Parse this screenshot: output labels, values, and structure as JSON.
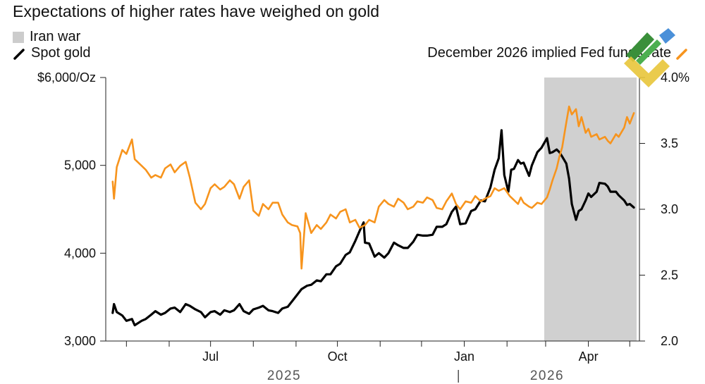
{
  "title": "Expectations of higher rates have weighed on gold",
  "legend": {
    "iran_war": "Iran war",
    "spot_gold": "Spot gold",
    "fed_funds": "December 2026 implied Fed funds rate"
  },
  "colors": {
    "gold_line": "#000000",
    "fed_line": "#f7941d",
    "shade": "#d0d0d0"
  },
  "chart_data": {
    "type": "line",
    "title": "Expectations of higher rates have weighed on gold",
    "x_ticks": [
      "Jul",
      "Oct",
      "Jan",
      "Apr"
    ],
    "year_labels": [
      "2025",
      "|",
      "2026"
    ],
    "left_axis": {
      "label": "$6,000/Oz",
      "ticks": [
        "3,000",
        "4,000",
        "5,000",
        "$6,000/Oz"
      ],
      "range": [
        3000,
        6000
      ]
    },
    "right_axis": {
      "ticks": [
        "2.0",
        "2.5",
        "3.0",
        "3.5",
        "4.0%"
      ],
      "range": [
        2.0,
        4.0
      ]
    },
    "shaded_period": {
      "name": "Iran war",
      "start": "2026-02-28",
      "end": "2026-05-15"
    },
    "series": [
      {
        "name": "Spot gold",
        "axis": "left",
        "points": [
          [
            "2025-04-21",
            3320
          ],
          [
            "2025-04-22",
            3420
          ],
          [
            "2025-04-24",
            3330
          ],
          [
            "2025-04-28",
            3290
          ],
          [
            "2025-05-01",
            3230
          ],
          [
            "2025-05-05",
            3250
          ],
          [
            "2025-05-07",
            3180
          ],
          [
            "2025-05-12",
            3230
          ],
          [
            "2025-05-15",
            3250
          ],
          [
            "2025-05-19",
            3300
          ],
          [
            "2025-05-22",
            3340
          ],
          [
            "2025-05-26",
            3300
          ],
          [
            "2025-05-29",
            3320
          ],
          [
            "2025-06-02",
            3370
          ],
          [
            "2025-06-05",
            3380
          ],
          [
            "2025-06-09",
            3330
          ],
          [
            "2025-06-13",
            3420
          ],
          [
            "2025-06-16",
            3400
          ],
          [
            "2025-06-20",
            3360
          ],
          [
            "2025-06-24",
            3330
          ],
          [
            "2025-06-27",
            3270
          ],
          [
            "2025-07-01",
            3330
          ],
          [
            "2025-07-04",
            3340
          ],
          [
            "2025-07-08",
            3300
          ],
          [
            "2025-07-11",
            3350
          ],
          [
            "2025-07-15",
            3330
          ],
          [
            "2025-07-18",
            3350
          ],
          [
            "2025-07-22",
            3420
          ],
          [
            "2025-07-25",
            3340
          ],
          [
            "2025-07-29",
            3310
          ],
          [
            "2025-08-01",
            3360
          ],
          [
            "2025-08-05",
            3380
          ],
          [
            "2025-08-08",
            3400
          ],
          [
            "2025-08-12",
            3350
          ],
          [
            "2025-08-15",
            3340
          ],
          [
            "2025-08-19",
            3320
          ],
          [
            "2025-08-22",
            3370
          ],
          [
            "2025-08-26",
            3390
          ],
          [
            "2025-08-29",
            3450
          ],
          [
            "2025-09-02",
            3530
          ],
          [
            "2025-09-05",
            3590
          ],
          [
            "2025-09-09",
            3630
          ],
          [
            "2025-09-12",
            3640
          ],
          [
            "2025-09-16",
            3690
          ],
          [
            "2025-09-19",
            3680
          ],
          [
            "2025-09-23",
            3760
          ],
          [
            "2025-09-26",
            3760
          ],
          [
            "2025-09-30",
            3850
          ],
          [
            "2025-10-03",
            3880
          ],
          [
            "2025-10-07",
            3980
          ],
          [
            "2025-10-10",
            4010
          ],
          [
            "2025-10-14",
            4140
          ],
          [
            "2025-10-17",
            4250
          ],
          [
            "2025-10-20",
            4350
          ],
          [
            "2025-10-21",
            4120
          ],
          [
            "2025-10-24",
            4110
          ],
          [
            "2025-10-28",
            3960
          ],
          [
            "2025-10-31",
            4000
          ],
          [
            "2025-11-04",
            3950
          ],
          [
            "2025-11-07",
            4000
          ],
          [
            "2025-11-11",
            4120
          ],
          [
            "2025-11-14",
            4090
          ],
          [
            "2025-11-18",
            4060
          ],
          [
            "2025-11-21",
            4060
          ],
          [
            "2025-11-25",
            4130
          ],
          [
            "2025-11-28",
            4210
          ],
          [
            "2025-12-02",
            4200
          ],
          [
            "2025-12-05",
            4200
          ],
          [
            "2025-12-09",
            4210
          ],
          [
            "2025-12-12",
            4300
          ],
          [
            "2025-12-16",
            4300
          ],
          [
            "2025-12-19",
            4330
          ],
          [
            "2025-12-23",
            4470
          ],
          [
            "2025-12-26",
            4530
          ],
          [
            "2025-12-29",
            4330
          ],
          [
            "2026-01-02",
            4340
          ],
          [
            "2026-01-06",
            4480
          ],
          [
            "2026-01-09",
            4500
          ],
          [
            "2026-01-13",
            4600
          ],
          [
            "2026-01-16",
            4590
          ],
          [
            "2026-01-20",
            4750
          ],
          [
            "2026-01-23",
            4950
          ],
          [
            "2026-01-26",
            5080
          ],
          [
            "2026-01-28",
            5400
          ],
          [
            "2026-01-30",
            4890
          ],
          [
            "2026-02-02",
            4700
          ],
          [
            "2026-02-04",
            4950
          ],
          [
            "2026-02-06",
            4960
          ],
          [
            "2026-02-09",
            5060
          ],
          [
            "2026-02-11",
            5020
          ],
          [
            "2026-02-13",
            5030
          ],
          [
            "2026-02-17",
            4880
          ],
          [
            "2026-02-19",
            5000
          ],
          [
            "2026-02-23",
            5150
          ],
          [
            "2026-02-26",
            5200
          ],
          [
            "2026-03-02",
            5310
          ],
          [
            "2026-03-04",
            5140
          ],
          [
            "2026-03-06",
            5150
          ],
          [
            "2026-03-09",
            5180
          ],
          [
            "2026-03-11",
            5150
          ],
          [
            "2026-03-13",
            5100
          ],
          [
            "2026-03-16",
            5020
          ],
          [
            "2026-03-18",
            4850
          ],
          [
            "2026-03-20",
            4560
          ],
          [
            "2026-03-23",
            4380
          ],
          [
            "2026-03-25",
            4480
          ],
          [
            "2026-03-27",
            4500
          ],
          [
            "2026-03-30",
            4600
          ],
          [
            "2026-04-01",
            4680
          ],
          [
            "2026-04-03",
            4640
          ],
          [
            "2026-04-07",
            4700
          ],
          [
            "2026-04-09",
            4800
          ],
          [
            "2026-04-13",
            4790
          ],
          [
            "2026-04-15",
            4760
          ],
          [
            "2026-04-17",
            4700
          ],
          [
            "2026-04-21",
            4700
          ],
          [
            "2026-04-23",
            4660
          ],
          [
            "2026-04-27",
            4600
          ],
          [
            "2026-04-29",
            4550
          ],
          [
            "2026-05-01",
            4560
          ],
          [
            "2026-05-04",
            4520
          ]
        ]
      },
      {
        "name": "December 2026 implied Fed funds rate",
        "axis": "right",
        "points": [
          [
            "2025-04-21",
            3.21
          ],
          [
            "2025-04-22",
            3.08
          ],
          [
            "2025-04-24",
            3.32
          ],
          [
            "2025-04-28",
            3.45
          ],
          [
            "2025-05-01",
            3.42
          ],
          [
            "2025-05-05",
            3.53
          ],
          [
            "2025-05-07",
            3.38
          ],
          [
            "2025-05-12",
            3.33
          ],
          [
            "2025-05-15",
            3.3
          ],
          [
            "2025-05-19",
            3.24
          ],
          [
            "2025-05-22",
            3.26
          ],
          [
            "2025-05-26",
            3.24
          ],
          [
            "2025-05-29",
            3.31
          ],
          [
            "2025-06-02",
            3.34
          ],
          [
            "2025-06-05",
            3.28
          ],
          [
            "2025-06-09",
            3.33
          ],
          [
            "2025-06-13",
            3.36
          ],
          [
            "2025-06-16",
            3.24
          ],
          [
            "2025-06-20",
            3.05
          ],
          [
            "2025-06-24",
            3.0
          ],
          [
            "2025-06-27",
            3.04
          ],
          [
            "2025-07-01",
            3.16
          ],
          [
            "2025-07-04",
            3.19
          ],
          [
            "2025-07-08",
            3.15
          ],
          [
            "2025-07-11",
            3.17
          ],
          [
            "2025-07-15",
            3.22
          ],
          [
            "2025-07-18",
            3.19
          ],
          [
            "2025-07-22",
            3.08
          ],
          [
            "2025-07-25",
            3.17
          ],
          [
            "2025-07-29",
            3.22
          ],
          [
            "2025-08-01",
            2.99
          ],
          [
            "2025-08-05",
            2.95
          ],
          [
            "2025-08-08",
            3.04
          ],
          [
            "2025-08-12",
            3.0
          ],
          [
            "2025-08-15",
            3.05
          ],
          [
            "2025-08-19",
            3.05
          ],
          [
            "2025-08-22",
            2.96
          ],
          [
            "2025-08-26",
            2.9
          ],
          [
            "2025-08-29",
            2.88
          ],
          [
            "2025-09-02",
            2.87
          ],
          [
            "2025-09-04",
            2.82
          ],
          [
            "2025-09-05",
            2.55
          ],
          [
            "2025-09-08",
            2.97
          ],
          [
            "2025-09-12",
            2.82
          ],
          [
            "2025-09-16",
            2.88
          ],
          [
            "2025-09-19",
            2.85
          ],
          [
            "2025-09-23",
            2.9
          ],
          [
            "2025-09-26",
            2.96
          ],
          [
            "2025-09-30",
            2.93
          ],
          [
            "2025-10-03",
            2.98
          ],
          [
            "2025-10-07",
            3.0
          ],
          [
            "2025-10-10",
            2.9
          ],
          [
            "2025-10-14",
            2.92
          ],
          [
            "2025-10-17",
            2.86
          ],
          [
            "2025-10-21",
            2.88
          ],
          [
            "2025-10-24",
            2.92
          ],
          [
            "2025-10-28",
            2.9
          ],
          [
            "2025-10-31",
            3.02
          ],
          [
            "2025-11-04",
            3.07
          ],
          [
            "2025-11-07",
            3.04
          ],
          [
            "2025-11-11",
            3.02
          ],
          [
            "2025-11-14",
            3.08
          ],
          [
            "2025-11-18",
            3.05
          ],
          [
            "2025-11-21",
            3.0
          ],
          [
            "2025-11-25",
            3.02
          ],
          [
            "2025-11-28",
            3.06
          ],
          [
            "2025-12-02",
            3.05
          ],
          [
            "2025-12-05",
            3.09
          ],
          [
            "2025-12-09",
            3.07
          ],
          [
            "2025-12-12",
            3.01
          ],
          [
            "2025-12-16",
            3.0
          ],
          [
            "2025-12-19",
            3.06
          ],
          [
            "2025-12-23",
            3.12
          ],
          [
            "2025-12-26",
            3.04
          ],
          [
            "2025-12-29",
            3.0
          ],
          [
            "2026-01-02",
            3.06
          ],
          [
            "2026-01-06",
            3.05
          ],
          [
            "2026-01-09",
            3.1
          ],
          [
            "2026-01-13",
            3.06
          ],
          [
            "2026-01-16",
            3.08
          ],
          [
            "2026-01-20",
            3.1
          ],
          [
            "2026-01-23",
            3.16
          ],
          [
            "2026-01-26",
            3.14
          ],
          [
            "2026-01-30",
            3.16
          ],
          [
            "2026-02-03",
            3.1
          ],
          [
            "2026-02-05",
            3.08
          ],
          [
            "2026-02-09",
            3.04
          ],
          [
            "2026-02-11",
            3.09
          ],
          [
            "2026-02-13",
            3.05
          ],
          [
            "2026-02-17",
            3.02
          ],
          [
            "2026-02-19",
            3.01
          ],
          [
            "2026-02-23",
            3.05
          ],
          [
            "2026-02-26",
            3.04
          ],
          [
            "2026-03-02",
            3.09
          ],
          [
            "2026-03-04",
            3.15
          ],
          [
            "2026-03-06",
            3.22
          ],
          [
            "2026-03-09",
            3.31
          ],
          [
            "2026-03-11",
            3.4
          ],
          [
            "2026-03-13",
            3.47
          ],
          [
            "2026-03-16",
            3.66
          ],
          [
            "2026-03-18",
            3.78
          ],
          [
            "2026-03-20",
            3.72
          ],
          [
            "2026-03-23",
            3.76
          ],
          [
            "2026-03-25",
            3.63
          ],
          [
            "2026-03-27",
            3.7
          ],
          [
            "2026-03-30",
            3.58
          ],
          [
            "2026-04-01",
            3.61
          ],
          [
            "2026-04-03",
            3.55
          ],
          [
            "2026-04-07",
            3.57
          ],
          [
            "2026-04-09",
            3.53
          ],
          [
            "2026-04-13",
            3.55
          ],
          [
            "2026-04-15",
            3.52
          ],
          [
            "2026-04-17",
            3.5
          ],
          [
            "2026-04-21",
            3.57
          ],
          [
            "2026-04-23",
            3.55
          ],
          [
            "2026-04-27",
            3.62
          ],
          [
            "2026-04-29",
            3.7
          ],
          [
            "2026-05-01",
            3.65
          ],
          [
            "2026-05-04",
            3.73
          ]
        ]
      }
    ]
  }
}
